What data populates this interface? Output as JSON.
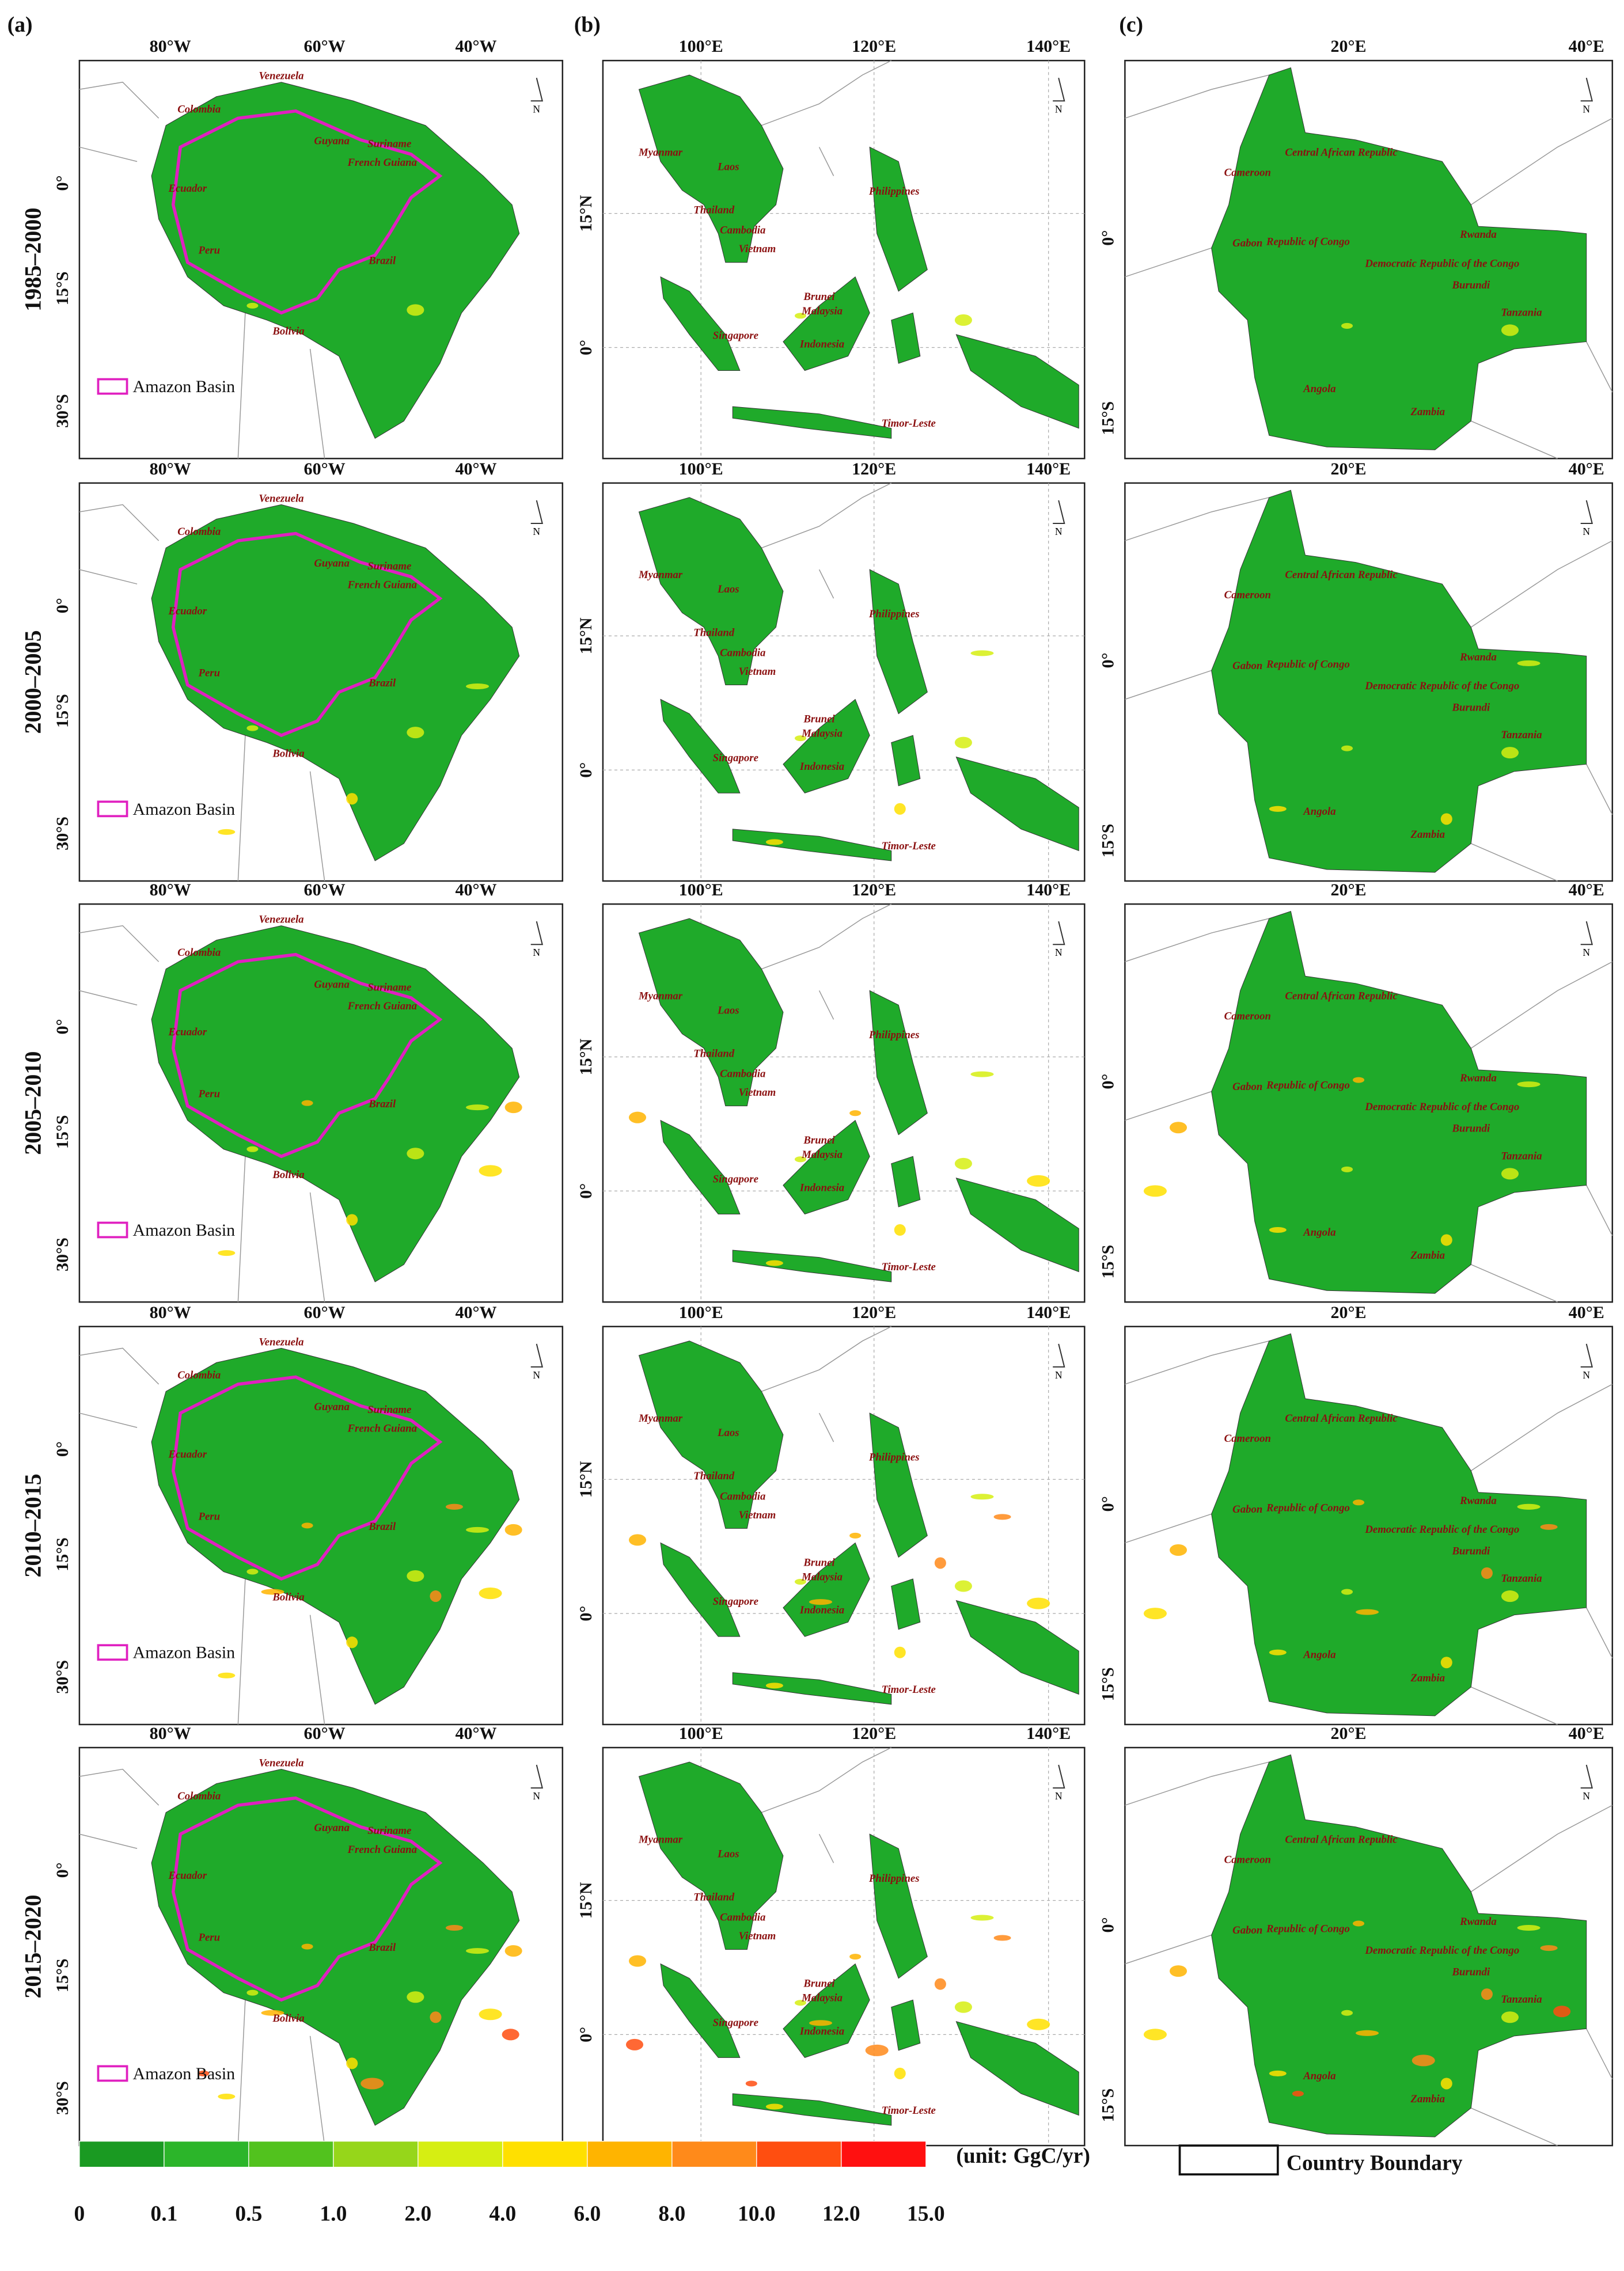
{
  "panel_labels": [
    "(a)",
    "(b)",
    "(c)"
  ],
  "periods": [
    "1985–2000",
    "2000–2005",
    "2005–2010",
    "2010–2015",
    "2015–2020"
  ],
  "columns": [
    {
      "x_ticks": [
        "80°W",
        "60°W",
        "40°W"
      ],
      "y_ticks": [
        "0°",
        "15°S",
        "30°S"
      ],
      "countries": [
        "Venezuela",
        "Colombia",
        "Guyana",
        "Suriname",
        "French Guiana",
        "Ecuador",
        "Peru",
        "Brazil",
        "Bolivia"
      ],
      "legend": "Amazon Basin"
    },
    {
      "x_ticks": [
        "100°E",
        "120°E",
        "140°E"
      ],
      "y_ticks": [
        "15°N",
        "0°"
      ],
      "countries": [
        "Myanmar",
        "Laos",
        "Thailand",
        "Cambodia",
        "Vietnam",
        "Philippines",
        "Brunei",
        "Malaysia",
        "Singapore",
        "Indonesia",
        "Timor-Leste"
      ]
    },
    {
      "x_ticks": [
        "20°E",
        "40°E"
      ],
      "y_ticks": [
        "0°",
        "15°S"
      ],
      "countries": [
        "Cameroon",
        "Central African Republic",
        "Gabon",
        "Republic of Congo",
        "Rwanda",
        "Democratic Republic of the Congo",
        "Burundi",
        "Tanzania",
        "Angola",
        "Zambia"
      ]
    }
  ],
  "north_label": "N",
  "colorbar": {
    "ticks": [
      "0",
      "0.1",
      "0.5",
      "1.0",
      "2.0",
      "4.0",
      "6.0",
      "8.0",
      "10.0",
      "12.0",
      "15.0"
    ],
    "colors": [
      "#1a9a22",
      "#2cb52a",
      "#52c21e",
      "#96d61a",
      "#d6ee12",
      "#ffe000",
      "#ffb400",
      "#ff8a1a",
      "#ff4e10",
      "#ff1010"
    ],
    "unit": "(unit: GgC/yr)"
  },
  "boundary_legend": "Country Boundary"
}
